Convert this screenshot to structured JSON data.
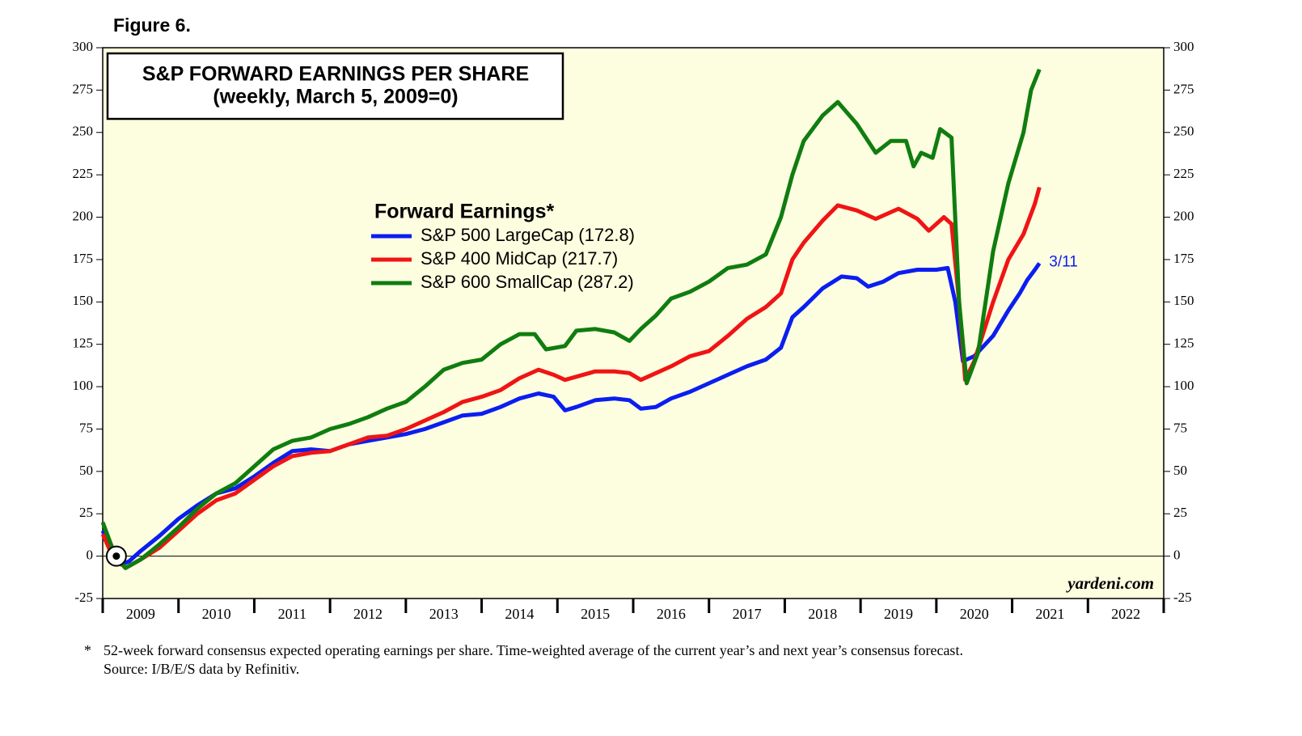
{
  "chart_data": {
    "type": "line",
    "figure_label": "Figure 6.",
    "title": "S&P FORWARD EARNINGS PER SHARE",
    "subtitle": "(weekly, March 5, 2009=0)",
    "legend_title": "Forward Earnings*",
    "annotation": "3/11",
    "source_brand": "yardeni.com",
    "footnote_marker": "*",
    "footnote": [
      "52-week forward consensus expected operating earnings per share. Time-weighted average of the current year’s and next year’s consensus forecast.",
      "Source: I/B/E/S data by Refinitiv."
    ],
    "base_point": {
      "x": 2009.18,
      "y": 0
    },
    "xlim": [
      2009,
      2023
    ],
    "xticks": [
      {
        "value": 2009.5,
        "label": "2009"
      },
      {
        "value": 2010.5,
        "label": "2010"
      },
      {
        "value": 2011.5,
        "label": "2011"
      },
      {
        "value": 2012.5,
        "label": "2012"
      },
      {
        "value": 2013.5,
        "label": "2013"
      },
      {
        "value": 2014.5,
        "label": "2014"
      },
      {
        "value": 2015.5,
        "label": "2015"
      },
      {
        "value": 2016.5,
        "label": "2016"
      },
      {
        "value": 2017.5,
        "label": "2017"
      },
      {
        "value": 2018.5,
        "label": "2018"
      },
      {
        "value": 2019.5,
        "label": "2019"
      },
      {
        "value": 2020.5,
        "label": "2020"
      },
      {
        "value": 2021.5,
        "label": "2021"
      },
      {
        "value": 2022.5,
        "label": "2022"
      }
    ],
    "ylim": [
      -25,
      300
    ],
    "yticks": [
      -25,
      0,
      25,
      50,
      75,
      100,
      125,
      150,
      175,
      200,
      225,
      250,
      275,
      300
    ],
    "zero_line": true,
    "background": "#fdfde0",
    "series": [
      {
        "name": "S&P 500 LargeCap (172.8)",
        "color": "#0a1ef0",
        "x": [
          2009.0,
          2009.1,
          2009.17,
          2009.25,
          2009.35,
          2009.5,
          2009.75,
          2010.0,
          2010.25,
          2010.5,
          2010.75,
          2011.0,
          2011.25,
          2011.5,
          2011.75,
          2012.0,
          2012.25,
          2012.5,
          2012.75,
          2013.0,
          2013.25,
          2013.5,
          2013.75,
          2014.0,
          2014.25,
          2014.5,
          2014.75,
          2014.95,
          2015.1,
          2015.25,
          2015.5,
          2015.75,
          2015.95,
          2016.1,
          2016.3,
          2016.5,
          2016.75,
          2017.0,
          2017.25,
          2017.5,
          2017.75,
          2017.95,
          2018.1,
          2018.25,
          2018.5,
          2018.75,
          2018.95,
          2019.1,
          2019.3,
          2019.5,
          2019.75,
          2020.0,
          2020.15,
          2020.25,
          2020.35,
          2020.5,
          2020.75,
          2020.95,
          2021.1,
          2021.2,
          2021.3,
          2021.36
        ],
        "values": [
          15,
          5,
          0,
          -5,
          -3,
          3,
          12,
          22,
          30,
          37,
          40,
          47,
          55,
          62,
          63,
          62,
          66,
          68,
          70,
          72,
          75,
          79,
          83,
          84,
          88,
          93,
          96,
          94,
          86,
          88,
          92,
          93,
          92,
          87,
          88,
          93,
          97,
          102,
          107,
          112,
          116,
          123,
          141,
          147,
          158,
          165,
          164,
          159,
          162,
          167,
          169,
          169,
          170,
          150,
          115,
          118,
          130,
          145,
          155,
          163,
          169,
          172.8
        ]
      },
      {
        "name": "S&P 400 MidCap (217.7)",
        "color": "#f01414",
        "x": [
          2009.0,
          2009.1,
          2009.17,
          2009.3,
          2009.5,
          2009.75,
          2010.0,
          2010.25,
          2010.5,
          2010.75,
          2011.0,
          2011.25,
          2011.5,
          2011.75,
          2012.0,
          2012.25,
          2012.5,
          2012.75,
          2013.0,
          2013.25,
          2013.5,
          2013.75,
          2014.0,
          2014.25,
          2014.5,
          2014.75,
          2014.95,
          2015.1,
          2015.5,
          2015.75,
          2015.95,
          2016.1,
          2016.3,
          2016.5,
          2016.75,
          2017.0,
          2017.25,
          2017.5,
          2017.75,
          2017.95,
          2018.1,
          2018.25,
          2018.5,
          2018.7,
          2018.95,
          2019.2,
          2019.5,
          2019.75,
          2019.9,
          2020.1,
          2020.2,
          2020.3,
          2020.38,
          2020.5,
          2020.75,
          2020.95,
          2021.15,
          2021.3,
          2021.36
        ],
        "values": [
          13,
          3,
          0,
          -7,
          -2,
          5,
          15,
          25,
          33,
          37,
          45,
          53,
          59,
          61,
          62,
          66,
          70,
          71,
          75,
          80,
          85,
          91,
          94,
          98,
          105,
          110,
          107,
          104,
          109,
          109,
          108,
          104,
          108,
          112,
          118,
          121,
          130,
          140,
          147,
          155,
          175,
          185,
          198,
          207,
          204,
          199,
          205,
          199,
          192,
          200,
          196,
          150,
          104,
          115,
          150,
          175,
          190,
          208,
          217.7
        ]
      },
      {
        "name": "S&P 600 SmallCap (287.2)",
        "color": "#0f7d0f",
        "x": [
          2009.0,
          2009.1,
          2009.17,
          2009.3,
          2009.5,
          2009.75,
          2010.0,
          2010.25,
          2010.5,
          2010.75,
          2011.0,
          2011.25,
          2011.5,
          2011.75,
          2012.0,
          2012.25,
          2012.5,
          2012.75,
          2013.0,
          2013.25,
          2013.5,
          2013.75,
          2014.0,
          2014.25,
          2014.5,
          2014.7,
          2014.85,
          2015.1,
          2015.25,
          2015.5,
          2015.75,
          2015.95,
          2016.1,
          2016.3,
          2016.5,
          2016.75,
          2017.0,
          2017.25,
          2017.5,
          2017.75,
          2017.95,
          2018.1,
          2018.25,
          2018.5,
          2018.7,
          2018.95,
          2019.2,
          2019.4,
          2019.6,
          2019.7,
          2019.8,
          2019.95,
          2020.05,
          2020.2,
          2020.3,
          2020.4,
          2020.55,
          2020.75,
          2020.95,
          2021.15,
          2021.25,
          2021.36
        ],
        "values": [
          20,
          8,
          0,
          -7,
          -2,
          7,
          17,
          28,
          37,
          43,
          53,
          63,
          68,
          70,
          75,
          78,
          82,
          87,
          91,
          100,
          110,
          114,
          116,
          125,
          131,
          131,
          122,
          124,
          133,
          134,
          132,
          127,
          134,
          142,
          152,
          156,
          162,
          170,
          172,
          178,
          200,
          225,
          245,
          260,
          268,
          255,
          238,
          245,
          245,
          230,
          238,
          235,
          252,
          247,
          150,
          102,
          120,
          180,
          220,
          250,
          275,
          287.2
        ]
      }
    ]
  }
}
